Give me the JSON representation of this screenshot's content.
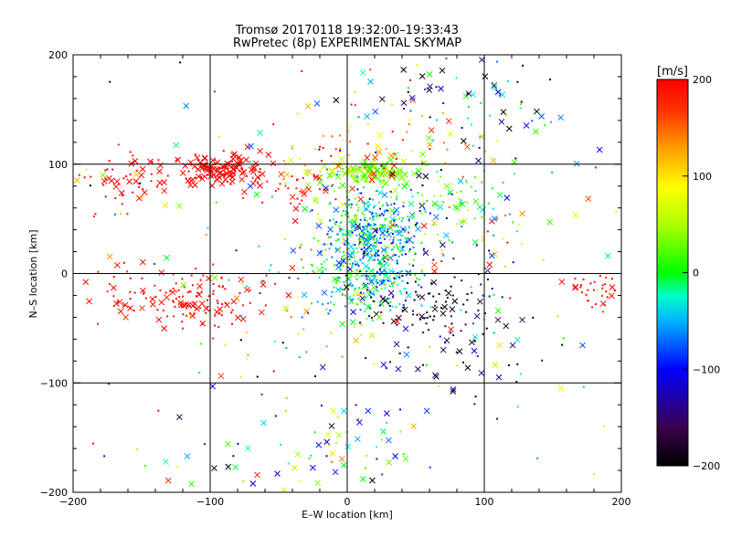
{
  "chart_data": {
    "type": "scatter",
    "title": "Tromsø 20170118 19:32:00–19:33:43",
    "subtitle": "RwPretec (8p) EXPERIMENTAL SKYMAP",
    "xlabel": "E–W location [km]",
    "ylabel": "N–S location [km]",
    "xlim": [
      -200,
      200
    ],
    "ylim": [
      -200,
      200
    ],
    "xticks": [
      "−200",
      "−100",
      "0",
      "100",
      "200"
    ],
    "yticks": [
      "−200",
      "−100",
      "0",
      "100",
      "200"
    ],
    "grid": true,
    "colorbar": {
      "label": "[m/s]",
      "range": [
        -200,
        200
      ],
      "ticks": [
        "200",
        "100",
        "0",
        "−100",
        "−200"
      ]
    },
    "markers": {
      "dot": "small dot",
      "cross": "x"
    },
    "clusters": [
      {
        "x": -90,
        "y": 95,
        "sx": 15,
        "sy": 7,
        "v": 200,
        "sv": 5,
        "n": 130,
        "crossFrac": 0.6
      },
      {
        "x": -160,
        "y": 85,
        "sx": 18,
        "sy": 12,
        "v": 195,
        "sv": 8,
        "n": 55,
        "crossFrac": 0.35
      },
      {
        "x": -40,
        "y": 80,
        "sx": 18,
        "sy": 12,
        "v": 190,
        "sv": 15,
        "n": 40,
        "crossFrac": 0.4
      },
      {
        "x": -110,
        "y": -25,
        "sx": 25,
        "sy": 14,
        "v": 195,
        "sv": 10,
        "n": 120,
        "crossFrac": 0.3
      },
      {
        "x": -160,
        "y": -15,
        "sx": 18,
        "sy": 12,
        "v": 190,
        "sv": 10,
        "n": 30,
        "crossFrac": 0.3
      },
      {
        "x": 180,
        "y": -15,
        "sx": 12,
        "sy": 10,
        "v": 195,
        "sv": 8,
        "n": 30,
        "crossFrac": 0.2
      },
      {
        "x": 15,
        "y": 93,
        "sx": 18,
        "sy": 6,
        "v": 40,
        "sv": 20,
        "n": 110,
        "crossFrac": 0.55
      },
      {
        "x": 25,
        "y": 110,
        "sx": 35,
        "sy": 20,
        "v": 130,
        "sv": 60,
        "n": 90,
        "crossFrac": 0.3
      },
      {
        "x": 20,
        "y": 35,
        "sx": 18,
        "sy": 22,
        "v": -40,
        "sv": 50,
        "n": 420,
        "crossFrac": 0.15
      },
      {
        "x": 15,
        "y": -5,
        "sx": 18,
        "sy": 18,
        "v": -30,
        "sv": 40,
        "n": 170,
        "crossFrac": 0.15
      },
      {
        "x": -5,
        "y": 20,
        "sx": 20,
        "sy": 35,
        "v": 20,
        "sv": 70,
        "n": 80,
        "crossFrac": 0.15
      },
      {
        "x": 55,
        "y": -25,
        "sx": 25,
        "sy": 15,
        "v": -175,
        "sv": 30,
        "n": 80,
        "crossFrac": 0.25
      },
      {
        "x": 85,
        "y": 70,
        "sx": 12,
        "sy": 10,
        "v": 20,
        "sv": 40,
        "n": 40,
        "crossFrac": 0.3
      },
      {
        "x": 90,
        "y": 155,
        "sx": 40,
        "sy": 30,
        "v": -90,
        "sv": 90,
        "n": 80,
        "crossFrac": 0.5
      },
      {
        "x": 85,
        "y": 30,
        "sx": 40,
        "sy": 35,
        "v": 40,
        "sv": 120,
        "n": 60,
        "crossFrac": 0.25
      },
      {
        "x": 80,
        "y": -70,
        "sx": 40,
        "sy": 25,
        "v": -150,
        "sv": 60,
        "n": 60,
        "crossFrac": 0.5
      },
      {
        "x": 10,
        "y": -150,
        "sx": 25,
        "sy": 25,
        "v": -40,
        "sv": 90,
        "n": 45,
        "crossFrac": 0.4
      },
      {
        "x": -80,
        "y": -170,
        "sx": 50,
        "sy": 20,
        "v": -20,
        "sv": 120,
        "n": 40,
        "crossFrac": 0.5
      },
      {
        "x": 0,
        "y": 0,
        "sx": 115,
        "sy": 110,
        "v": 0,
        "sv": 130,
        "n": 220,
        "crossFrac": 0.3
      }
    ]
  }
}
